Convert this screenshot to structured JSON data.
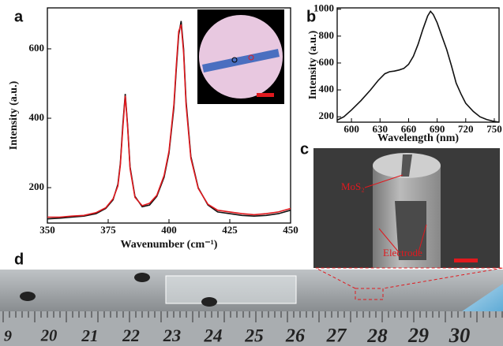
{
  "chart_data": [
    {
      "type": "line",
      "xlabel": "Wavenumber (cm⁻¹)",
      "ylabel": "Intensity (a.u.)",
      "x": [
        350,
        355,
        360,
        365,
        370,
        374,
        377,
        379,
        380,
        381,
        382,
        383,
        384,
        386,
        389,
        392,
        395,
        398,
        400,
        402,
        403,
        404,
        405,
        406,
        407,
        409,
        412,
        416,
        420,
        425,
        430,
        435,
        440,
        445,
        450
      ],
      "series": [
        {
          "color": "#111111",
          "values": [
            110,
            112,
            115,
            118,
            125,
            140,
            165,
            210,
            270,
            380,
            470,
            380,
            260,
            175,
            145,
            150,
            175,
            230,
            300,
            430,
            540,
            640,
            680,
            600,
            450,
            290,
            200,
            150,
            130,
            125,
            120,
            118,
            120,
            125,
            135
          ]
        },
        {
          "color": "#e0191e",
          "values": [
            115,
            115,
            118,
            120,
            128,
            142,
            168,
            205,
            265,
            370,
            465,
            375,
            255,
            172,
            148,
            155,
            178,
            235,
            305,
            440,
            550,
            650,
            670,
            590,
            440,
            285,
            198,
            152,
            135,
            130,
            125,
            122,
            125,
            130,
            140
          ]
        }
      ],
      "xlim": [
        350,
        450
      ],
      "xticks": [
        350,
        375,
        400,
        425,
        450
      ],
      "ylim": [
        98,
        718
      ],
      "yticks": [
        200,
        400,
        600
      ]
    },
    {
      "type": "line",
      "xlabel": "Wavelength (nm)",
      "ylabel": "Intensity (a.u.)",
      "x": [
        585,
        592,
        600,
        610,
        620,
        628,
        635,
        640,
        645,
        650,
        655,
        660,
        665,
        670,
        675,
        680,
        683,
        686,
        690,
        695,
        700,
        705,
        710,
        715,
        720,
        728,
        735,
        742,
        750,
        755
      ],
      "series": [
        {
          "color": "#111111",
          "values": [
            175,
            200,
            250,
            320,
            400,
            470,
            520,
            535,
            540,
            548,
            560,
            590,
            650,
            740,
            850,
            950,
            985,
            960,
            900,
            800,
            700,
            580,
            450,
            370,
            300,
            240,
            200,
            180,
            165,
            160
          ]
        }
      ],
      "xlim": [
        585,
        755
      ],
      "xticks": [
        600,
        630,
        660,
        690,
        720,
        750
      ],
      "ylim": [
        160,
        1010
      ],
      "yticks": [
        200,
        400,
        600,
        800,
        1000
      ]
    }
  ],
  "panels": [
    "a",
    "b",
    "c",
    "d"
  ],
  "photo_c": {
    "material": "MoS₂",
    "electrode": "Electrode"
  },
  "ruler_labels": [
    "9",
    "20",
    "21",
    "22",
    "23",
    "24",
    "25",
    "26",
    "27",
    "28",
    "29",
    "30"
  ]
}
